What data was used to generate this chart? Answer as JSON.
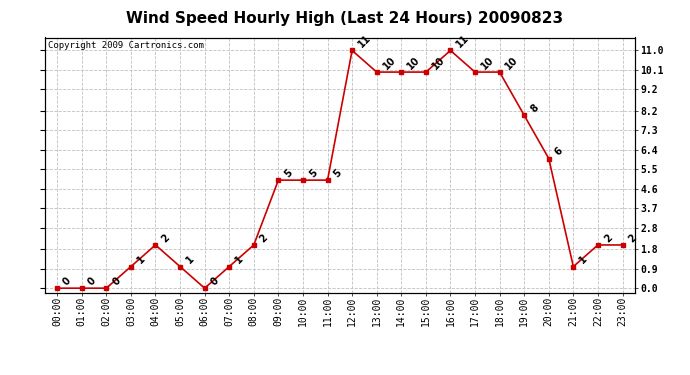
{
  "title": "Wind Speed Hourly High (Last 24 Hours) 20090823",
  "copyright": "Copyright 2009 Cartronics.com",
  "hours": [
    "00:00",
    "01:00",
    "02:00",
    "03:00",
    "04:00",
    "05:00",
    "06:00",
    "07:00",
    "08:00",
    "09:00",
    "10:00",
    "11:00",
    "12:00",
    "13:00",
    "14:00",
    "15:00",
    "16:00",
    "17:00",
    "18:00",
    "19:00",
    "20:00",
    "21:00",
    "22:00",
    "23:00"
  ],
  "values": [
    0,
    0,
    0,
    1,
    2,
    1,
    0,
    1,
    2,
    5,
    5,
    5,
    11,
    10,
    10,
    10,
    11,
    10,
    10,
    8,
    6,
    1,
    2,
    2
  ],
  "yticks": [
    0.0,
    0.9,
    1.8,
    2.8,
    3.7,
    4.6,
    5.5,
    6.4,
    7.3,
    8.2,
    9.2,
    10.1,
    11.0
  ],
  "line_color": "#cc0000",
  "marker_color": "#cc0000",
  "bg_color": "#ffffff",
  "grid_color": "#c0c0c0",
  "title_fontsize": 11,
  "label_fontsize": 7,
  "annotation_fontsize": 7,
  "copyright_fontsize": 6.5,
  "ylim_min": -0.2,
  "ylim_max": 11.6
}
